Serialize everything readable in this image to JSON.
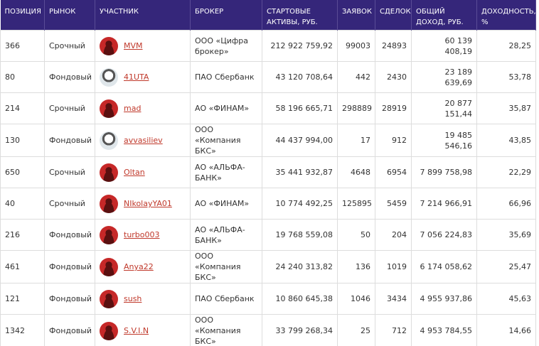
{
  "table": {
    "columns": [
      "ПОЗИЦИЯ",
      "РЫНОК",
      "УЧАСТНИК",
      "БРОКЕР",
      "СТАРТОВЫЕ АКТИВЫ, РУБ.",
      "ЗАЯВОК",
      "СДЕЛОК",
      "ОБЩИЙ ДОХОД, РУБ.",
      "ДОХОДНОСТЬ, %"
    ],
    "rows": [
      [
        "366",
        "Срочный",
        "MVM",
        "ООО «Цифра брокер»",
        "212 922 759,92",
        "99003",
        "24893",
        "60 139 408,19",
        "28,25"
      ],
      [
        "80",
        "Фондовый",
        "41UTA",
        "ПАО Сбербанк",
        "43 120 708,64",
        "442",
        "2430",
        "23 189 639,69",
        "53,78"
      ],
      [
        "214",
        "Срочный",
        "mad",
        "АО «ФИНАМ»",
        "58 196 665,71",
        "298889",
        "28919",
        "20 877 151,44",
        "35,87"
      ],
      [
        "130",
        "Фондовый",
        "avvasiliev",
        "ООО «Компания БКС»",
        "44 437 994,00",
        "17",
        "912",
        "19 485 546,16",
        "43,85"
      ],
      [
        "650",
        "Срочный",
        "Oltan",
        "АО «АЛЬФА-БАНК»",
        "35 441 932,87",
        "4648",
        "6954",
        "7 899 758,98",
        "22,29"
      ],
      [
        "40",
        "Срочный",
        "NIkolayYA01",
        "АО «ФИНАМ»",
        "10 774 492,25",
        "125895",
        "5459",
        "7 214 966,91",
        "66,96"
      ],
      [
        "216",
        "Фондовый",
        "turbo003",
        "АО «АЛЬФА-БАНК»",
        "19 768 559,08",
        "50",
        "204",
        "7 056 224,83",
        "35,69"
      ],
      [
        "461",
        "Фондовый",
        "Anya22",
        "ООО «Компания БКС»",
        "24 240 313,82",
        "136",
        "1019",
        "6 174 058,62",
        "25,47"
      ],
      [
        "121",
        "Фондовый",
        "sush",
        "ПАО Сбербанк",
        "10 860 645,38",
        "1046",
        "3434",
        "4 955 937,86",
        "45,63"
      ],
      [
        "1342",
        "Фондовый",
        "S.V.I.N",
        "ООО «Компания БКС»",
        "33 799 268,34",
        "25",
        "712",
        "4 953 784,55",
        "14,66"
      ]
    ]
  }
}
